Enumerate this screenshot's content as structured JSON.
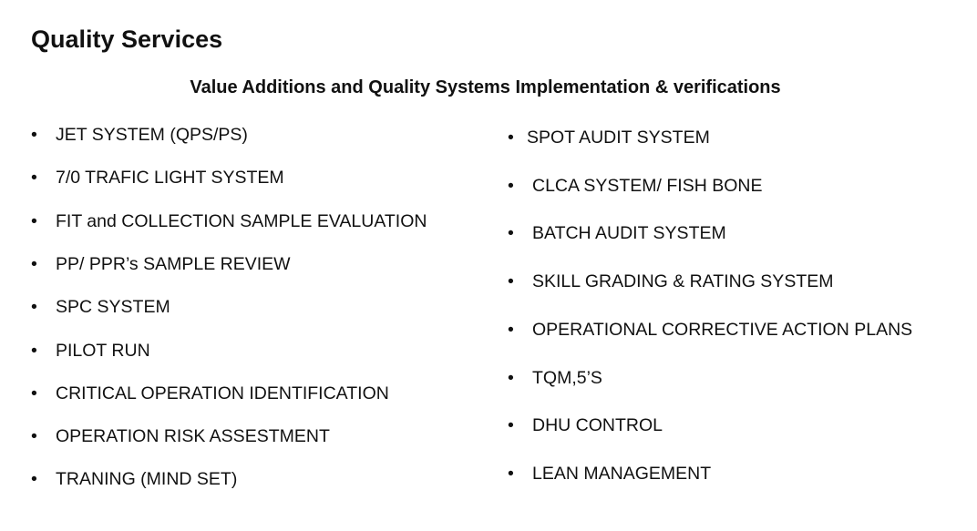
{
  "title": "Quality Services",
  "subtitle": "Value Additions and Quality Systems Implementation & verifications",
  "left_items": [
    "JET SYSTEM (QPS/PS)",
    "7/0 TRAFIC LIGHT SYSTEM",
    "FIT and COLLECTION SAMPLE EVALUATION",
    "PP/ PPR’s SAMPLE REVIEW",
    "SPC SYSTEM",
    "PILOT RUN",
    "CRITICAL OPERATION IDENTIFICATION",
    "OPERATION RISK ASSESTMENT",
    "TRANING (MIND SET)"
  ],
  "right_items": [
    "SPOT AUDIT SYSTEM",
    "CLCA SYSTEM/ FISH BONE",
    "BATCH AUDIT SYSTEM",
    "SKILL GRADING & RATING SYSTEM",
    "OPERATIONAL CORRECTIVE ACTION PLANS",
    "TQM,5’S",
    "DHU CONTROL",
    "LEAN MANAGEMENT"
  ],
  "bullet": "•"
}
